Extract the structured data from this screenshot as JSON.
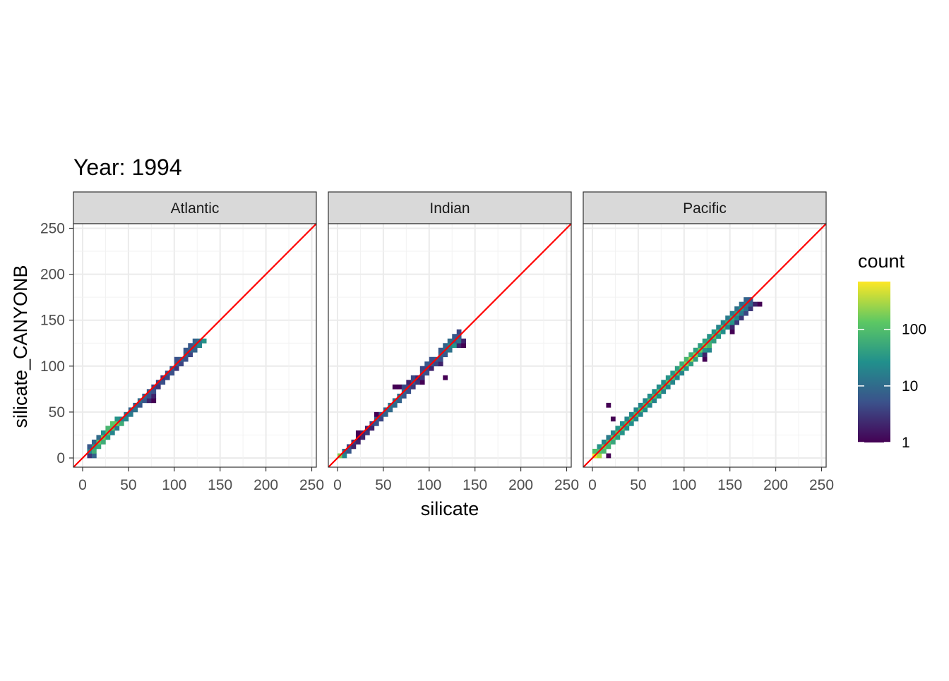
{
  "chart_data": {
    "type": "heatmap",
    "title": "Year: 1994",
    "xlabel": "silicate",
    "ylabel": "silicate_CANYONB",
    "xlim": [
      -10,
      255
    ],
    "ylim": [
      -10,
      255
    ],
    "x_ticks": [
      0,
      50,
      100,
      150,
      200,
      250
    ],
    "y_ticks": [
      0,
      50,
      100,
      150,
      200,
      250
    ],
    "bin_width": 5,
    "reference_line": {
      "slope": 1,
      "intercept": 0,
      "color": "#ff0000"
    },
    "grid": true,
    "legend": {
      "title": "count",
      "position": "right",
      "scale": "log10",
      "ticks": [
        1,
        10,
        100
      ],
      "range": [
        1,
        700
      ],
      "colors": [
        "#440154",
        "#3b528b",
        "#21908c",
        "#5dc863",
        "#fde725"
      ]
    },
    "panels": [
      {
        "name": "Atlantic",
        "cells": [
          [
            5,
            0,
            3
          ],
          [
            5,
            5,
            20
          ],
          [
            5,
            10,
            6
          ],
          [
            10,
            0,
            8
          ],
          [
            10,
            5,
            60
          ],
          [
            10,
            10,
            40
          ],
          [
            10,
            15,
            8
          ],
          [
            15,
            10,
            50
          ],
          [
            15,
            15,
            120
          ],
          [
            15,
            20,
            10
          ],
          [
            20,
            15,
            60
          ],
          [
            20,
            20,
            150
          ],
          [
            20,
            25,
            25
          ],
          [
            25,
            20,
            40
          ],
          [
            25,
            25,
            120
          ],
          [
            25,
            30,
            80
          ],
          [
            30,
            25,
            20
          ],
          [
            30,
            30,
            110
          ],
          [
            30,
            35,
            120
          ],
          [
            35,
            30,
            15
          ],
          [
            35,
            35,
            150
          ],
          [
            35,
            40,
            30
          ],
          [
            40,
            35,
            60
          ],
          [
            40,
            40,
            20
          ],
          [
            45,
            40,
            20
          ],
          [
            45,
            45,
            12
          ],
          [
            50,
            45,
            15
          ],
          [
            50,
            50,
            8
          ],
          [
            55,
            50,
            12
          ],
          [
            55,
            55,
            8
          ],
          [
            60,
            55,
            6
          ],
          [
            60,
            60,
            10
          ],
          [
            65,
            60,
            6
          ],
          [
            65,
            65,
            8
          ],
          [
            70,
            60,
            2
          ],
          [
            70,
            65,
            5
          ],
          [
            70,
            70,
            6
          ],
          [
            75,
            60,
            1
          ],
          [
            75,
            65,
            2
          ],
          [
            75,
            70,
            5
          ],
          [
            75,
            75,
            4
          ],
          [
            80,
            75,
            3
          ],
          [
            80,
            80,
            4
          ],
          [
            85,
            80,
            5
          ],
          [
            85,
            85,
            3
          ],
          [
            90,
            85,
            4
          ],
          [
            90,
            90,
            5
          ],
          [
            95,
            90,
            5
          ],
          [
            95,
            95,
            6
          ],
          [
            100,
            95,
            3
          ],
          [
            100,
            100,
            6
          ],
          [
            100,
            105,
            5
          ],
          [
            105,
            100,
            4
          ],
          [
            105,
            105,
            7
          ],
          [
            110,
            105,
            5
          ],
          [
            110,
            110,
            8
          ],
          [
            110,
            115,
            6
          ],
          [
            115,
            110,
            4
          ],
          [
            115,
            115,
            8
          ],
          [
            115,
            120,
            6
          ],
          [
            120,
            115,
            8
          ],
          [
            120,
            120,
            10
          ],
          [
            120,
            125,
            8
          ],
          [
            125,
            120,
            20
          ],
          [
            125,
            125,
            12
          ],
          [
            130,
            125,
            30
          ]
        ]
      },
      {
        "name": "Indian",
        "cells": [
          [
            0,
            0,
            200
          ],
          [
            5,
            0,
            20
          ],
          [
            5,
            5,
            10
          ],
          [
            10,
            5,
            6
          ],
          [
            10,
            10,
            4
          ],
          [
            15,
            10,
            2
          ],
          [
            15,
            15,
            3
          ],
          [
            20,
            15,
            2
          ],
          [
            20,
            20,
            1
          ],
          [
            20,
            25,
            1
          ],
          [
            25,
            20,
            2
          ],
          [
            25,
            25,
            2
          ],
          [
            30,
            25,
            3
          ],
          [
            30,
            30,
            2
          ],
          [
            35,
            30,
            2
          ],
          [
            35,
            35,
            4
          ],
          [
            40,
            35,
            5
          ],
          [
            40,
            40,
            6
          ],
          [
            40,
            45,
            1
          ],
          [
            45,
            40,
            4
          ],
          [
            45,
            45,
            6
          ],
          [
            50,
            45,
            8
          ],
          [
            50,
            50,
            8
          ],
          [
            55,
            50,
            10
          ],
          [
            55,
            55,
            12
          ],
          [
            60,
            55,
            10
          ],
          [
            60,
            60,
            12
          ],
          [
            65,
            60,
            8
          ],
          [
            65,
            65,
            10
          ],
          [
            60,
            75,
            1
          ],
          [
            65,
            75,
            1
          ],
          [
            70,
            65,
            6
          ],
          [
            70,
            70,
            8
          ],
          [
            70,
            75,
            4
          ],
          [
            75,
            70,
            5
          ],
          [
            75,
            75,
            4
          ],
          [
            75,
            80,
            2
          ],
          [
            80,
            75,
            3
          ],
          [
            80,
            80,
            5
          ],
          [
            80,
            85,
            4
          ],
          [
            85,
            80,
            3
          ],
          [
            85,
            85,
            2
          ],
          [
            90,
            80,
            1
          ],
          [
            90,
            85,
            3
          ],
          [
            90,
            90,
            5
          ],
          [
            90,
            95,
            4
          ],
          [
            95,
            90,
            5
          ],
          [
            95,
            95,
            4
          ],
          [
            95,
            100,
            6
          ],
          [
            100,
            95,
            2
          ],
          [
            100,
            100,
            6
          ],
          [
            100,
            105,
            5
          ],
          [
            105,
            100,
            4
          ],
          [
            105,
            105,
            6
          ],
          [
            110,
            100,
            2
          ],
          [
            110,
            105,
            5
          ],
          [
            110,
            110,
            8
          ],
          [
            110,
            115,
            6
          ],
          [
            115,
            85,
            1
          ],
          [
            115,
            110,
            6
          ],
          [
            115,
            115,
            10
          ],
          [
            115,
            120,
            8
          ],
          [
            120,
            115,
            12
          ],
          [
            120,
            120,
            20
          ],
          [
            120,
            125,
            10
          ],
          [
            125,
            120,
            30
          ],
          [
            125,
            125,
            8
          ],
          [
            125,
            130,
            6
          ],
          [
            130,
            120,
            2
          ],
          [
            130,
            125,
            12
          ],
          [
            130,
            130,
            6
          ],
          [
            130,
            135,
            4
          ],
          [
            135,
            120,
            1
          ],
          [
            135,
            125,
            2
          ]
        ]
      },
      {
        "name": "Pacific",
        "cells": [
          [
            0,
            0,
            600
          ],
          [
            0,
            5,
            100
          ],
          [
            5,
            0,
            300
          ],
          [
            5,
            5,
            100
          ],
          [
            5,
            10,
            30
          ],
          [
            10,
            5,
            80
          ],
          [
            10,
            10,
            150
          ],
          [
            10,
            15,
            20
          ],
          [
            15,
            0,
            1
          ],
          [
            15,
            10,
            70
          ],
          [
            15,
            15,
            100
          ],
          [
            15,
            20,
            15
          ],
          [
            15,
            55,
            1
          ],
          [
            20,
            15,
            50
          ],
          [
            20,
            20,
            120
          ],
          [
            20,
            25,
            20
          ],
          [
            20,
            40,
            1
          ],
          [
            25,
            20,
            40
          ],
          [
            25,
            25,
            120
          ],
          [
            25,
            30,
            30
          ],
          [
            30,
            25,
            30
          ],
          [
            30,
            30,
            100
          ],
          [
            30,
            35,
            25
          ],
          [
            35,
            30,
            25
          ],
          [
            35,
            35,
            90
          ],
          [
            35,
            40,
            20
          ],
          [
            40,
            35,
            25
          ],
          [
            40,
            40,
            80
          ],
          [
            40,
            45,
            20
          ],
          [
            45,
            40,
            20
          ],
          [
            45,
            45,
            90
          ],
          [
            45,
            50,
            20
          ],
          [
            50,
            45,
            20
          ],
          [
            50,
            50,
            90
          ],
          [
            50,
            55,
            20
          ],
          [
            55,
            50,
            25
          ],
          [
            55,
            55,
            90
          ],
          [
            55,
            60,
            20
          ],
          [
            60,
            55,
            20
          ],
          [
            60,
            60,
            100
          ],
          [
            60,
            65,
            25
          ],
          [
            65,
            60,
            20
          ],
          [
            65,
            65,
            90
          ],
          [
            65,
            70,
            25
          ],
          [
            70,
            65,
            25
          ],
          [
            70,
            70,
            120
          ],
          [
            70,
            75,
            25
          ],
          [
            75,
            70,
            20
          ],
          [
            75,
            75,
            90
          ],
          [
            75,
            80,
            25
          ],
          [
            80,
            75,
            20
          ],
          [
            80,
            80,
            120
          ],
          [
            80,
            85,
            30
          ],
          [
            85,
            80,
            20
          ],
          [
            85,
            85,
            100
          ],
          [
            85,
            90,
            30
          ],
          [
            90,
            85,
            20
          ],
          [
            90,
            90,
            120
          ],
          [
            90,
            95,
            40
          ],
          [
            95,
            90,
            20
          ],
          [
            95,
            95,
            150
          ],
          [
            95,
            100,
            60
          ],
          [
            100,
            95,
            30
          ],
          [
            100,
            100,
            200
          ],
          [
            100,
            105,
            80
          ],
          [
            105,
            100,
            40
          ],
          [
            105,
            105,
            300
          ],
          [
            105,
            110,
            60
          ],
          [
            110,
            105,
            40
          ],
          [
            110,
            110,
            200
          ],
          [
            110,
            115,
            40
          ],
          [
            115,
            110,
            30
          ],
          [
            115,
            115,
            150
          ],
          [
            115,
            120,
            40
          ],
          [
            120,
            105,
            1
          ],
          [
            120,
            110,
            2
          ],
          [
            120,
            115,
            30
          ],
          [
            120,
            120,
            150
          ],
          [
            120,
            125,
            40
          ],
          [
            125,
            115,
            20
          ],
          [
            125,
            120,
            80
          ],
          [
            125,
            125,
            60
          ],
          [
            125,
            130,
            30
          ],
          [
            130,
            125,
            40
          ],
          [
            130,
            130,
            120
          ],
          [
            130,
            135,
            30
          ],
          [
            135,
            130,
            30
          ],
          [
            135,
            135,
            100
          ],
          [
            135,
            140,
            20
          ],
          [
            140,
            135,
            25
          ],
          [
            140,
            140,
            90
          ],
          [
            140,
            145,
            20
          ],
          [
            145,
            140,
            20
          ],
          [
            145,
            145,
            60
          ],
          [
            145,
            150,
            15
          ],
          [
            150,
            135,
            1
          ],
          [
            150,
            140,
            2
          ],
          [
            150,
            145,
            30
          ],
          [
            150,
            150,
            50
          ],
          [
            150,
            155,
            15
          ],
          [
            155,
            145,
            3
          ],
          [
            155,
            150,
            20
          ],
          [
            155,
            155,
            40
          ],
          [
            155,
            160,
            12
          ],
          [
            160,
            150,
            3
          ],
          [
            160,
            155,
            15
          ],
          [
            160,
            160,
            30
          ],
          [
            160,
            165,
            10
          ],
          [
            165,
            155,
            4
          ],
          [
            165,
            160,
            12
          ],
          [
            165,
            165,
            15
          ],
          [
            165,
            170,
            8
          ],
          [
            170,
            160,
            3
          ],
          [
            170,
            165,
            8
          ],
          [
            170,
            170,
            6
          ],
          [
            175,
            165,
            2
          ],
          [
            180,
            165,
            1
          ]
        ]
      }
    ]
  }
}
